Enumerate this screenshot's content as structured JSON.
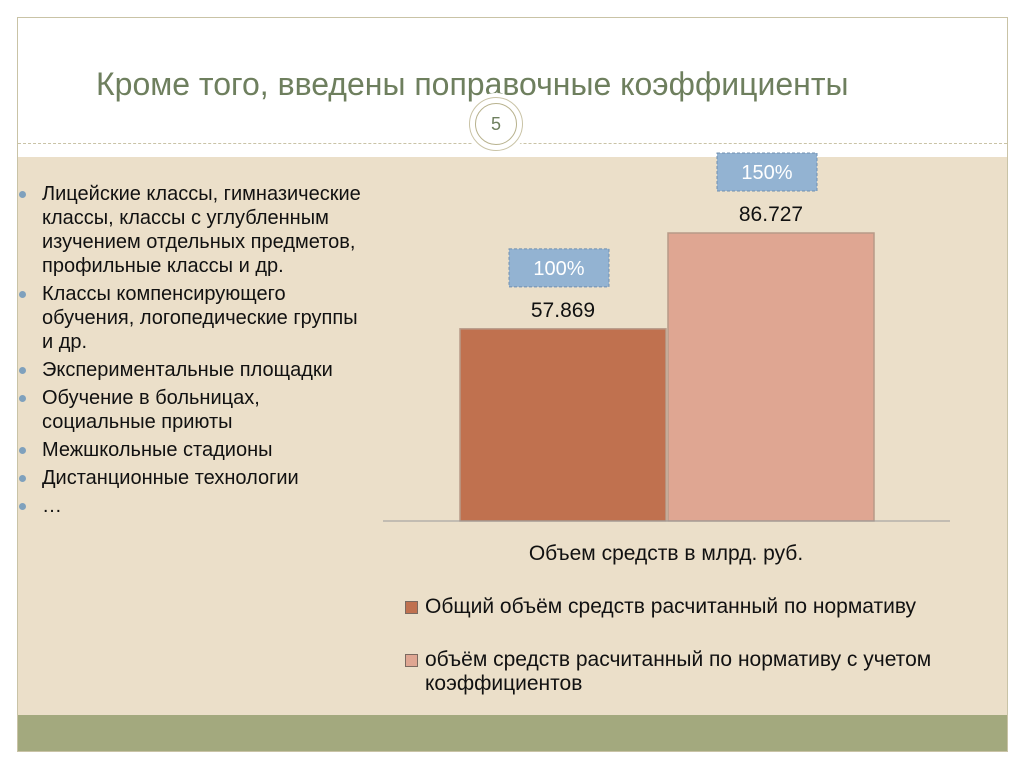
{
  "slide": {
    "title": "Кроме того, введены поправочные коэффициенты",
    "page_number": "5"
  },
  "bullets": [
    "Лицейские классы, гимназические классы, классы с углубленным изучением отдельных предметов, профильные классы и др.",
    "Классы компенсирующего обучения, логопедические группы и др.",
    "Экспериментальные площадки",
    "Обучение в больницах, социальные приюты",
    "Межшкольные стадионы",
    "Дистанционные технологии",
    "…"
  ],
  "chart_data": {
    "type": "bar",
    "categories": [
      "Объем средств в млрд. руб."
    ],
    "xlabel": "Объем средств в млрд. руб.",
    "series": [
      {
        "name": "Общий объём средств расчитанный по нормативу",
        "values": [
          57.869
        ],
        "value_label": "57.869",
        "percent_label": "100%",
        "color": "#c0714f"
      },
      {
        "name": "объём средств расчитанный по нормативу с учетом коэффициентов",
        "values": [
          86.727
        ],
        "value_label": "86.727",
        "percent_label": "150%",
        "color": "#dfa692"
      }
    ],
    "legend_position": "bottom",
    "grid": false
  },
  "colors": {
    "title": "#6e7f5e",
    "content_bg": "#ebdfc9",
    "footer": "#a3a97e",
    "percent_box": "#93b3d2",
    "bullet": "#7fa1bd"
  }
}
